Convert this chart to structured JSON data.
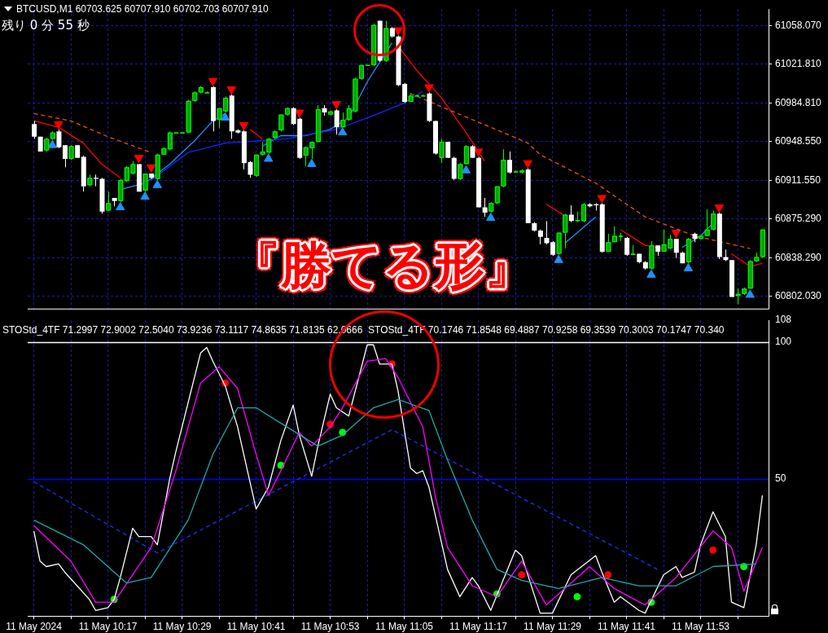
{
  "chart_data": [
    {
      "type": "candlestick",
      "title": "BTCUSD,M1 60703.625 60707.910 60702.703 60707.910",
      "annotations": [
        "残り 0 分 55 秒",
        "『勝てる形』"
      ],
      "x": [
        "2024-05-11T10:05",
        "2024-05-11T10:06",
        "2024-05-11T10:07",
        "2024-05-11T10:08",
        "2024-05-11T10:09",
        "2024-05-11T10:10",
        "2024-05-11T10:11",
        "2024-05-11T10:12",
        "2024-05-11T10:13",
        "2024-05-11T10:14",
        "2024-05-11T10:15",
        "2024-05-11T10:16",
        "2024-05-11T10:17",
        "2024-05-11T10:18",
        "2024-05-11T10:19",
        "2024-05-11T10:20",
        "2024-05-11T10:21",
        "2024-05-11T10:22",
        "2024-05-11T10:23",
        "2024-05-11T10:24",
        "2024-05-11T10:25",
        "2024-05-11T10:26",
        "2024-05-11T10:27",
        "2024-05-11T10:28",
        "2024-05-11T10:29",
        "2024-05-11T10:30",
        "2024-05-11T10:31",
        "2024-05-11T10:32",
        "2024-05-11T10:33",
        "2024-05-11T10:34",
        "2024-05-11T10:35",
        "2024-05-11T10:36",
        "2024-05-11T10:37",
        "2024-05-11T10:38",
        "2024-05-11T10:39",
        "2024-05-11T10:40",
        "2024-05-11T10:41",
        "2024-05-11T10:42",
        "2024-05-11T10:43",
        "2024-05-11T10:44",
        "2024-05-11T10:45",
        "2024-05-11T10:46",
        "2024-05-11T10:47",
        "2024-05-11T10:48",
        "2024-05-11T10:49",
        "2024-05-11T10:50",
        "2024-05-11T10:51",
        "2024-05-11T10:52",
        "2024-05-11T10:53",
        "2024-05-11T10:54",
        "2024-05-11T10:55",
        "2024-05-11T10:56",
        "2024-05-11T10:57",
        "2024-05-11T10:58",
        "2024-05-11T10:59",
        "2024-05-11T11:00",
        "2024-05-11T11:01",
        "2024-05-11T11:02",
        "2024-05-11T11:03",
        "2024-05-11T11:04",
        "2024-05-11T11:05",
        "2024-05-11T11:06",
        "2024-05-11T11:07",
        "2024-05-11T11:08",
        "2024-05-11T11:09",
        "2024-05-11T11:10",
        "2024-05-11T11:11",
        "2024-05-11T11:12",
        "2024-05-11T11:13",
        "2024-05-11T11:14",
        "2024-05-11T11:15",
        "2024-05-11T11:16",
        "2024-05-11T11:17",
        "2024-05-11T11:18",
        "2024-05-11T11:19",
        "2024-05-11T11:20",
        "2024-05-11T11:21",
        "2024-05-11T11:22",
        "2024-05-11T11:23",
        "2024-05-11T11:24",
        "2024-05-11T11:25",
        "2024-05-11T11:26",
        "2024-05-11T11:27",
        "2024-05-11T11:28",
        "2024-05-11T11:29",
        "2024-05-11T11:30",
        "2024-05-11T11:31",
        "2024-05-11T11:32",
        "2024-05-11T11:33",
        "2024-05-11T11:34",
        "2024-05-11T11:35",
        "2024-05-11T11:36",
        "2024-05-11T11:37",
        "2024-05-11T11:38",
        "2024-05-11T11:39",
        "2024-05-11T11:40",
        "2024-05-11T11:41",
        "2024-05-11T11:42",
        "2024-05-11T11:43",
        "2024-05-11T11:44",
        "2024-05-11T11:45",
        "2024-05-11T11:46",
        "2024-05-11T11:47",
        "2024-05-11T11:48",
        "2024-05-11T11:49",
        "2024-05-11T11:50",
        "2024-05-11T11:51",
        "2024-05-11T11:52",
        "2024-05-11T11:53",
        "2024-05-11T11:54",
        "2024-05-11T11:55",
        "2024-05-11T11:56",
        "2024-05-11T11:57",
        "2024-05-11T11:58",
        "2024-05-11T11:59",
        "2024-05-11T12:00",
        "2024-05-11T12:01",
        "2024-05-11T12:02",
        "2024-05-11T12:03"
      ],
      "ohlc": [
        [
          60965,
          60968,
          60951,
          60953
        ],
        [
          60953,
          60953,
          60939,
          60939
        ],
        [
          60940,
          60952,
          60939,
          60951
        ],
        [
          60951,
          60958,
          60950,
          60957
        ],
        [
          60958,
          60960,
          60942,
          60943
        ],
        [
          60945,
          60945,
          60924,
          60932
        ],
        [
          60932,
          60945,
          60931,
          60944
        ],
        [
          60945,
          60945,
          60933,
          60933
        ],
        [
          60934,
          60935,
          60901,
          60906
        ],
        [
          60907,
          60917,
          60906,
          60914
        ],
        [
          60914,
          60917,
          60906,
          60913
        ],
        [
          60913,
          60914,
          60880,
          60882
        ],
        [
          60883,
          60901,
          60883,
          60890
        ],
        [
          60895,
          60895,
          60887,
          60892
        ],
        [
          60892,
          60913,
          60891,
          60912
        ],
        [
          60911,
          60925,
          60910,
          60924
        ],
        [
          60918,
          60930,
          60917,
          60927
        ],
        [
          60927,
          60927,
          60901,
          60901
        ],
        [
          60902,
          60918,
          60901,
          60918
        ],
        [
          60918,
          60918,
          60913,
          60914
        ],
        [
          60913,
          60937,
          60912,
          60936
        ],
        [
          60936,
          60943,
          60936,
          60942
        ],
        [
          60941,
          60958,
          60940,
          60957
        ],
        [
          60957,
          60957,
          60956,
          60957
        ],
        [
          60957,
          60957,
          60956,
          60957
        ],
        [
          60957,
          60988,
          60957,
          60987
        ],
        [
          60987,
          60996,
          60986,
          60995
        ],
        [
          60995,
          61001,
          60994,
          61000
        ],
        [
          60995,
          60996,
          60995,
          60995
        ],
        [
          61000,
          61001,
          60958,
          60968
        ],
        [
          60969,
          60980,
          60961,
          60980
        ],
        [
          60977,
          60991,
          60976,
          60990
        ],
        [
          60992,
          60993,
          60951,
          60958
        ],
        [
          60959,
          60960,
          60956,
          60957
        ],
        [
          60958,
          60959,
          60922,
          60928
        ],
        [
          60929,
          60930,
          60914,
          60917
        ],
        [
          60916,
          60936,
          60915,
          60936
        ],
        [
          60936,
          60948,
          60935,
          60939
        ],
        [
          60938,
          60952,
          60937,
          60951
        ],
        [
          60952,
          60959,
          60951,
          60958
        ],
        [
          60959,
          60974,
          60958,
          60974
        ],
        [
          60974,
          60981,
          60973,
          60980
        ],
        [
          60980,
          60981,
          60964,
          60965
        ],
        [
          60970,
          60971,
          60932,
          60933
        ],
        [
          60935,
          60944,
          60925,
          60943
        ],
        [
          60942,
          60948,
          60932,
          60948
        ],
        [
          60948,
          60983,
          60948,
          60979
        ],
        [
          60980,
          60983,
          60973,
          60976
        ],
        [
          60974,
          60978,
          60973,
          60977
        ],
        [
          60978,
          60979,
          60955,
          60962
        ],
        [
          60962,
          60976,
          60962,
          60969
        ],
        [
          60969,
          60983,
          60968,
          60980
        ],
        [
          60977,
          61009,
          60976,
          61008
        ],
        [
          61008,
          61021,
          61007,
          61021
        ],
        [
          61021,
          61021,
          61020,
          61021
        ],
        [
          61021,
          61060,
          61020,
          61059
        ],
        [
          61063,
          61063,
          61024,
          61025
        ],
        [
          61025,
          61063,
          61024,
          61056
        ],
        [
          61056,
          61057,
          61047,
          61048
        ],
        [
          61048,
          61049,
          61001,
          61002
        ],
        [
          61003,
          61004,
          60985,
          60986
        ],
        [
          60986,
          60994,
          60986,
          60992
        ],
        [
          60992,
          60993,
          60992,
          60992
        ],
        [
          60992,
          60993,
          60992,
          60992
        ],
        [
          60994,
          60995,
          60967,
          60968
        ],
        [
          60968,
          60968,
          60936,
          60937
        ],
        [
          60933,
          60951,
          60928,
          60948
        ],
        [
          60948,
          60948,
          60933,
          60933
        ],
        [
          60933,
          60934,
          60912,
          60913
        ],
        [
          60913,
          60928,
          60912,
          60927
        ],
        [
          60927,
          60945,
          60927,
          60944
        ],
        [
          60944,
          60945,
          60933,
          60933
        ],
        [
          60933,
          60934,
          60886,
          60886
        ],
        [
          60886,
          60895,
          60877,
          60881
        ],
        [
          60882,
          60891,
          60881,
          60890
        ],
        [
          60890,
          60906,
          60889,
          60906
        ],
        [
          60906,
          60941,
          60905,
          60931
        ],
        [
          60931,
          60939,
          60918,
          60919
        ],
        [
          60920,
          60921,
          60919,
          60920
        ],
        [
          60919,
          60922,
          60918,
          60921
        ],
        [
          60922,
          60923,
          60871,
          60871
        ],
        [
          60871,
          60872,
          60863,
          60864
        ],
        [
          60864,
          60865,
          60851,
          60858
        ],
        [
          60857,
          60873,
          60851,
          60852
        ],
        [
          60853,
          60854,
          60840,
          60841
        ],
        [
          60842,
          60862,
          60841,
          60862
        ],
        [
          60862,
          60880,
          60847,
          60879
        ],
        [
          60879,
          60888,
          60872,
          60873
        ],
        [
          60873,
          60882,
          60872,
          60874
        ],
        [
          60873,
          60890,
          60872,
          60889
        ],
        [
          60889,
          60890,
          60886,
          60887
        ],
        [
          60889,
          60890,
          60883,
          60888
        ],
        [
          60889,
          60890,
          60843,
          60844
        ],
        [
          60844,
          60861,
          60844,
          60853
        ],
        [
          60853,
          60868,
          60853,
          60859
        ],
        [
          60859,
          60862,
          60854,
          60859
        ],
        [
          60857,
          60858,
          60840,
          60841
        ],
        [
          60841,
          60850,
          60841,
          60842
        ],
        [
          60842,
          60842,
          60833,
          60834
        ],
        [
          60834,
          60835,
          60827,
          60828
        ],
        [
          60828,
          60854,
          60827,
          60850
        ],
        [
          60850,
          60850,
          60840,
          60844
        ],
        [
          60844,
          60865,
          60844,
          60851
        ],
        [
          60847,
          60860,
          60846,
          60856
        ],
        [
          60856,
          60856,
          60838,
          60843
        ],
        [
          60843,
          60844,
          60833,
          60833
        ],
        [
          60834,
          60857,
          60833,
          60856
        ],
        [
          60861,
          60862,
          60853,
          60856
        ],
        [
          60856,
          60860,
          60856,
          60859
        ],
        [
          60859,
          60884,
          60859,
          60865
        ],
        [
          60865,
          60883,
          60864,
          60880
        ],
        [
          60880,
          60881,
          60837,
          60839
        ],
        [
          60839,
          60846,
          60835,
          60836
        ],
        [
          60836,
          60836,
          60801,
          60801
        ],
        [
          60802,
          60809,
          60794,
          60804
        ],
        [
          60804,
          60810,
          60803,
          60809
        ],
        [
          60809,
          60836,
          60809,
          60835
        ],
        [
          60835,
          60843,
          60834,
          60839
        ],
        [
          60839,
          60865,
          60838,
          60865
        ]
      ],
      "series": [
        {
          "type": "line",
          "color": "#e8501e",
          "line_style": "dashed",
          "x": [
            "2024-05-11T10:05",
            "2024-05-11T10:11",
            "2024-05-11T10:17",
            "2024-05-11T10:24",
            "2024-05-11T10:25",
            "2024-05-11T11:06",
            "2024-05-11T11:12",
            "2024-05-11T11:19",
            "2024-05-11T11:25",
            "2024-05-11T11:27",
            "2024-05-11T11:36",
            "2024-05-11T11:44",
            "2024-05-11T11:52",
            "2024-05-11T12:01"
          ],
          "values": [
            60975,
            60968,
            60953,
            60938,
            null,
            60994,
            60979,
            60962,
            60947,
            60936,
            60909,
            60877,
            60859,
            60847
          ]
        },
        {
          "type": "line",
          "color": "#1428ff",
          "x": [
            "2024-05-11T10:24",
            "2024-05-11T10:30",
            "2024-05-11T10:36",
            "2024-05-11T10:46",
            "2024-05-11T10:54",
            "2024-05-11T11:00",
            "2024-05-11T11:05",
            "2024-05-11T11:08"
          ],
          "values": [
            60912,
            60938,
            60947,
            60951,
            60960,
            60973,
            60985,
            60996
          ]
        },
        {
          "type": "line",
          "color": "#ff0000",
          "x": [
            "2024-05-11T10:05",
            "2024-05-11T10:09",
            "2024-05-11T10:13",
            "2024-05-11T10:16",
            "2024-05-11T10:19",
            "2024-05-11T10:21",
            "2024-05-11T10:37",
            "2024-05-11T10:40",
            "2024-05-11T10:42",
            "2024-05-11T10:44",
            "2024-05-11T11:04",
            "2024-05-11T11:07",
            "2024-05-11T11:11",
            "2024-05-11T11:15",
            "2024-05-11T11:18",
            "2024-05-11T11:20",
            "2024-05-11T11:25",
            "2024-05-11T11:28",
            "2024-05-11T11:31",
            "2024-05-11T11:33",
            "2024-05-11T11:37",
            "2024-05-11T11:40",
            "2024-05-11T11:44",
            "2024-05-11T11:47",
            "2024-05-11T11:49",
            "2024-05-11T11:56",
            "2024-05-11T11:58",
            "2024-05-11T12:01",
            "2024-05-11T12:03"
          ],
          "values": [
            60968,
            60962,
            60947,
            60927,
            60914,
            null,
            null,
            60960,
            60951,
            null,
            61039,
            61016,
            60990,
            60957,
            60930,
            null,
            null,
            60889,
            60878,
            null,
            null,
            60865,
            60850,
            60847,
            null,
            null,
            60842,
            60830,
            60833
          ]
        },
        {
          "type": "line",
          "color": "#1e90ff",
          "x": [
            "2024-05-11T10:19",
            "2024-05-11T10:23",
            "2024-05-11T10:27",
            "2024-05-11T10:31",
            "2024-05-11T10:34",
            "2024-05-11T10:36",
            "2024-05-11T10:37",
            "2024-05-11T10:42",
            "2024-05-11T10:45",
            "2024-05-11T10:49",
            "2024-05-11T10:53",
            "2024-05-11T10:56",
            "2024-05-11T10:59",
            "2024-05-11T11:03",
            "2024-05-11T11:04",
            "2024-05-11T11:31",
            "2024-05-11T11:34",
            "2024-05-11T11:36",
            "2024-05-11T11:37",
            "2024-05-11T11:50",
            "2024-05-11T11:53",
            "2024-05-11T11:55"
          ],
          "values": [
            60903,
            60909,
            60927,
            60949,
            60968,
            60975,
            null,
            60944,
            60954,
            60954,
            60960,
            60971,
            61005,
            61042,
            null,
            60852,
            60867,
            60877,
            null,
            60848,
            60859,
            60871
          ]
        },
        {
          "type": "scatter",
          "color": "#ff0000",
          "marker": "triangle",
          "x": [
            "2024-05-11T10:09",
            "2024-05-11T10:22",
            "2024-05-11T10:24",
            "2024-05-11T10:34",
            "2024-05-11T10:37",
            "2024-05-11T10:39",
            "2024-05-11T10:48",
            "2024-05-11T10:54",
            "2024-05-11T11:04",
            "2024-05-11T11:09",
            "2024-05-11T11:17",
            "2024-05-11T11:25",
            "2024-05-11T11:37",
            "2024-05-11T11:49",
            "2024-05-11T11:56"
          ],
          "values": [
            60965,
            60933,
            60924,
            61006,
            60998,
            60964,
            60976,
            60984,
            61054,
            61000,
            60939,
            60928,
            60895,
            60862,
            60886
          ]
        },
        {
          "type": "scatter",
          "color": "#1e90ff",
          "marker": "triangle",
          "x": [
            "2024-05-11T10:08",
            "2024-05-11T10:19",
            "2024-05-11T10:23",
            "2024-05-11T10:25",
            "2024-05-11T10:36",
            "2024-05-11T10:43",
            "2024-05-11T10:50",
            "2024-05-11T10:55",
            "2024-05-11T11:15",
            "2024-05-11T11:19",
            "2024-05-11T11:30",
            "2024-05-11T11:45",
            "2024-05-11T11:51",
            "2024-05-11T12:01"
          ],
          "values": [
            60945,
            60886,
            60896,
            60907,
            60971,
            60932,
            60927,
            60957,
            60921,
            60876,
            60836,
            60822,
            60828,
            60803
          ]
        }
      ],
      "xlim": [
        "2024-05-11T10:04",
        "2024-05-11T12:04"
      ],
      "xticks": [
        {
          "value": "2024-05-11T10:05",
          "label": null
        },
        {
          "value": "2024-05-11T10:11",
          "label": null
        },
        {
          "value": "2024-05-11T10:17",
          "label": null
        },
        {
          "value": "2024-05-11T10:23",
          "label": null
        },
        {
          "value": "2024-05-11T10:29",
          "label": null
        },
        {
          "value": "2024-05-11T10:35",
          "label": null
        },
        {
          "value": "2024-05-11T10:41",
          "label": null
        },
        {
          "value": "2024-05-11T10:47",
          "label": null
        },
        {
          "value": "2024-05-11T10:53",
          "label": null
        },
        {
          "value": "2024-05-11T10:59",
          "label": null
        },
        {
          "value": "2024-05-11T11:05",
          "label": null
        },
        {
          "value": "2024-05-11T11:11",
          "label": null
        },
        {
          "value": "2024-05-11T11:17",
          "label": null
        },
        {
          "value": "2024-05-11T11:23",
          "label": null
        },
        {
          "value": "2024-05-11T11:29",
          "label": null
        },
        {
          "value": "2024-05-11T11:35",
          "label": null
        },
        {
          "value": "2024-05-11T11:41",
          "label": null
        },
        {
          "value": "2024-05-11T11:47",
          "label": null
        },
        {
          "value": "2024-05-11T11:53",
          "label": null
        },
        {
          "value": "2024-05-11T11:59",
          "label": null
        }
      ],
      "ylim": [
        60790,
        61074
      ],
      "yticks": [
        {
          "value": 60802.03,
          "label": "60802.030"
        },
        {
          "value": 60838.29,
          "label": "60838.290"
        },
        {
          "value": 60875.29,
          "label": "60875.290"
        },
        {
          "value": 60911.55,
          "label": "60911.550"
        },
        {
          "value": 60948.55,
          "label": "60948.550"
        },
        {
          "value": 60984.81,
          "label": "60984.810"
        },
        {
          "value": 61021.81,
          "label": "61021.810"
        },
        {
          "value": 61058.07,
          "label": "61058.070"
        }
      ],
      "grid": true,
      "tick_labels": "y"
    },
    {
      "type": "line",
      "title": "STOStd_4TF 71.2997 72.9002 72.5040 73.9236 73.1117 74.8635 71.8135 62.0666  STOStd_4TF 70.1746 71.8548 69.4887 70.9258 69.3539 70.3003 70.1747 70.340",
      "series": [
        {
          "color": "#20a8a8",
          "x": [
            "2024-05-11T10:05",
            "2024-05-11T10:13",
            "2024-05-11T10:20",
            "2024-05-11T10:24",
            "2024-05-11T10:30",
            "2024-05-11T10:34",
            "2024-05-11T10:38",
            "2024-05-11T10:41",
            "2024-05-11T10:46",
            "2024-05-11T10:51",
            "2024-05-11T10:55",
            "2024-05-11T11:00",
            "2024-05-11T11:04",
            "2024-05-11T11:09",
            "2024-05-11T11:12",
            "2024-05-11T11:16",
            "2024-05-11T11:20",
            "2024-05-11T11:24",
            "2024-05-11T11:30",
            "2024-05-11T11:37",
            "2024-05-11T11:43",
            "2024-05-11T11:49",
            "2024-05-11T11:55",
            "2024-05-11T12:02"
          ],
          "values": [
            35,
            26,
            12,
            14,
            35,
            59,
            76,
            76,
            69,
            62,
            66,
            76,
            79,
            75,
            57,
            35,
            17,
            13,
            10,
            14,
            11,
            11,
            18,
            19
          ]
        },
        {
          "color": "#ff00ff",
          "x": [
            "2024-05-11T10:05",
            "2024-05-11T10:11",
            "2024-05-11T10:15",
            "2024-05-11T10:18",
            "2024-05-11T10:24",
            "2024-05-11T10:28",
            "2024-05-11T10:32",
            "2024-05-11T10:35",
            "2024-05-11T10:38",
            "2024-05-11T10:41",
            "2024-05-11T10:43",
            "2024-05-11T10:45",
            "2024-05-11T10:48",
            "2024-05-11T10:50",
            "2024-05-11T10:53",
            "2024-05-11T10:55",
            "2024-05-11T10:59",
            "2024-05-11T11:02",
            "2024-05-11T11:04",
            "2024-05-11T11:08",
            "2024-05-11T11:10",
            "2024-05-11T11:12",
            "2024-05-11T11:16",
            "2024-05-11T11:20",
            "2024-05-11T11:24",
            "2024-05-11T11:28",
            "2024-05-11T11:35",
            "2024-05-11T11:39",
            "2024-05-11T11:44",
            "2024-05-11T11:49",
            "2024-05-11T11:55",
            "2024-05-11T11:58",
            "2024-05-11T12:00",
            "2024-05-11T12:03"
          ],
          "values": [
            33,
            20,
            5,
            5,
            25,
            53,
            85,
            91,
            83,
            59,
            44,
            53,
            67,
            62,
            69,
            76,
            93,
            94,
            87,
            69,
            44,
            25,
            11,
            7,
            20,
            4,
            18,
            10,
            4,
            14,
            31,
            25,
            9,
            25
          ]
        },
        {
          "color": "#ffffff",
          "x": [
            "2024-05-11T10:05",
            "2024-05-11T10:06",
            "2024-05-11T10:07",
            "2024-05-11T10:09",
            "2024-05-11T10:10",
            "2024-05-11T10:12",
            "2024-05-11T10:14",
            "2024-05-11T10:15",
            "2024-05-11T10:17",
            "2024-05-11T10:18",
            "2024-05-11T10:19",
            "2024-05-11T10:21",
            "2024-05-11T10:22",
            "2024-05-11T10:24",
            "2024-05-11T10:25",
            "2024-05-11T10:27",
            "2024-05-11T10:28",
            "2024-05-11T10:32",
            "2024-05-11T10:33",
            "2024-05-11T10:34",
            "2024-05-11T10:36",
            "2024-05-11T10:38",
            "2024-05-11T10:40",
            "2024-05-11T10:41",
            "2024-05-11T10:43",
            "2024-05-11T10:45",
            "2024-05-11T10:47",
            "2024-05-11T10:48",
            "2024-05-11T10:50",
            "2024-05-11T10:51",
            "2024-05-11T10:53",
            "2024-05-11T10:54",
            "2024-05-11T10:56",
            "2024-05-11T10:59",
            "2024-05-11T11:00",
            "2024-05-11T11:01",
            "2024-05-11T11:03",
            "2024-05-11T11:04",
            "2024-05-11T11:06",
            "2024-05-11T11:07",
            "2024-05-11T11:08",
            "2024-05-11T11:09",
            "2024-05-11T11:12",
            "2024-05-11T11:14",
            "2024-05-11T11:16",
            "2024-05-11T11:17",
            "2024-05-11T11:19",
            "2024-05-11T11:23",
            "2024-05-11T11:24",
            "2024-05-11T11:27",
            "2024-05-11T11:29",
            "2024-05-11T11:32",
            "2024-05-11T11:36",
            "2024-05-11T11:37",
            "2024-05-11T11:39",
            "2024-05-11T11:40",
            "2024-05-11T11:43",
            "2024-05-11T11:44",
            "2024-05-11T11:47",
            "2024-05-11T11:49",
            "2024-05-11T11:50",
            "2024-05-11T11:52",
            "2024-05-11T11:53",
            "2024-05-11T11:55",
            "2024-05-11T11:57",
            "2024-05-11T11:58",
            "2024-05-11T12:00",
            "2024-05-11T12:02",
            "2024-05-11T12:03"
          ],
          "values": [
            31,
            20,
            18,
            19,
            16,
            11,
            6,
            2,
            3,
            6,
            14,
            32,
            29,
            29,
            26,
            50,
            60,
            96,
            98,
            93,
            84,
            69,
            49,
            39,
            47,
            64,
            77,
            66,
            51,
            62,
            81,
            76,
            73,
            99,
            99,
            92,
            92,
            82,
            54,
            52,
            53,
            47,
            17,
            7,
            14,
            11,
            2,
            24,
            22,
            1,
            1,
            15,
            22,
            16,
            5,
            7,
            2,
            1,
            15,
            18,
            14,
            16,
            26,
            38,
            29,
            5,
            3,
            26,
            44
          ]
        },
        {
          "color": "#2030ff",
          "line_style": "dashed",
          "x": [
            "2024-05-11T10:05",
            "2024-05-11T10:25",
            "2024-05-11T11:03",
            "2024-05-11T11:46"
          ],
          "values": [
            49,
            23,
            68,
            17
          ]
        },
        {
          "type": "scatter",
          "color": "#ff0000",
          "marker": "circle",
          "x": [
            "2024-05-11T10:36",
            "2024-05-11T10:53",
            "2024-05-11T11:03",
            "2024-05-11T11:24",
            "2024-05-11T11:38",
            "2024-05-11T11:55"
          ],
          "values": [
            85,
            70,
            92,
            15,
            15,
            24
          ]
        },
        {
          "type": "scatter",
          "color": "#00ff00",
          "marker": "circle",
          "x": [
            "2024-05-11T10:18",
            "2024-05-11T10:45",
            "2024-05-11T10:55",
            "2024-05-11T11:20",
            "2024-05-11T11:33",
            "2024-05-11T11:45",
            "2024-05-11T12:00"
          ],
          "values": [
            6,
            55,
            67,
            8,
            7,
            5,
            18
          ]
        }
      ],
      "xlim": [
        "2024-05-11T10:04",
        "2024-05-11T12:04"
      ],
      "xticks": [
        {
          "value": "2024-05-11T10:05",
          "label": "11 May 2024"
        },
        {
          "value": "2024-05-11T10:11",
          "label": null
        },
        {
          "value": "2024-05-11T10:17",
          "label": "11 May 10:17"
        },
        {
          "value": "2024-05-11T10:23",
          "label": null
        },
        {
          "value": "2024-05-11T10:29",
          "label": "11 May 10:29"
        },
        {
          "value": "2024-05-11T10:35",
          "label": null
        },
        {
          "value": "2024-05-11T10:41",
          "label": "11 May 10:41"
        },
        {
          "value": "2024-05-11T10:47",
          "label": null
        },
        {
          "value": "2024-05-11T10:53",
          "label": "11 May 10:53"
        },
        {
          "value": "2024-05-11T10:59",
          "label": null
        },
        {
          "value": "2024-05-11T11:05",
          "label": "11 May 11:05"
        },
        {
          "value": "2024-05-11T11:11",
          "label": null
        },
        {
          "value": "2024-05-11T11:17",
          "label": "11 May 11:17"
        },
        {
          "value": "2024-05-11T11:23",
          "label": null
        },
        {
          "value": "2024-05-11T11:29",
          "label": "11 May 11:29"
        },
        {
          "value": "2024-05-11T11:35",
          "label": null
        },
        {
          "value": "2024-05-11T11:41",
          "label": "11 May 11:41"
        },
        {
          "value": "2024-05-11T11:47",
          "label": null
        },
        {
          "value": "2024-05-11T11:53",
          "label": "11 May 11:53"
        },
        {
          "value": "2024-05-11T11:59",
          "label": null
        }
      ],
      "ylim": [
        0,
        108
      ],
      "yticks": [
        50,
        100,
        108
      ],
      "grid": "x",
      "ref_lines": [
        {
          "axis": "y",
          "value": 100,
          "color": "#ffffff"
        },
        {
          "axis": "y",
          "value": 50,
          "color": "#0000ff"
        }
      ]
    }
  ]
}
